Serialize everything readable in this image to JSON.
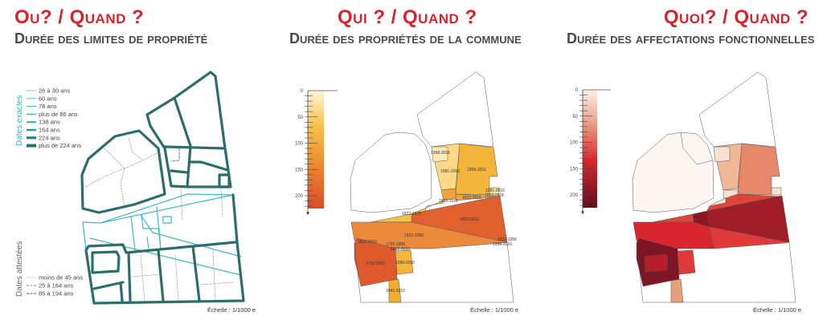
{
  "panels": [
    {
      "title": "Ou? / Quand ?",
      "subtitle": "Durée des limites de propriété",
      "scale": "Échelle : 1/1000 e",
      "legend_exact_heading": "Dates exactes",
      "legend_exact": [
        "26 à 30 ans",
        "60 ans",
        "78 ans",
        "plus de 86 ans",
        "138 ans",
        "164 ans",
        "224 ans",
        "plus de 224 ans"
      ],
      "legend_attested_heading": "Dates attestées",
      "legend_attested": [
        "moins de 45 ans",
        "25 à 164 ans",
        "85 à 194 ans"
      ]
    },
    {
      "title": "Qui ?  / Quand ?",
      "subtitle": "Durée des propriétés de la commune",
      "scale": "Échelle : 1/1000 e",
      "colorbar_ticks": [
        "0",
        "50",
        "100",
        "150",
        "200"
      ],
      "parcel_labels": [
        "1968-2016",
        "1981-2016",
        "1956-2016",
        "1981-2016",
        "1822-2016",
        "1822-2016",
        "1822-2016",
        "1823-1978",
        "1823-2016",
        "1822-1996",
        "1822-1956",
        "1956-2016",
        "1823-2016",
        "1796-1956",
        "1822-2016",
        "1752-2016",
        "1956-2016",
        "1941-2010"
      ]
    },
    {
      "title": "Quoi? / Quand ?",
      "subtitle": "Durée des  affectations fonctionnelles",
      "scale": "Échelle : 1/1000 e",
      "colorbar_ticks": [
        "0",
        "50",
        "100",
        "150",
        "200"
      ]
    }
  ],
  "colors": {
    "title": "#d8232a",
    "subtitle": "#4a4a4a",
    "teal_dark": "#2c6e6c",
    "teal_light": "#3bbcc4",
    "orange_scale": [
      "#fdf5d8",
      "#f4b63a",
      "#de5a2c"
    ],
    "red_scale": [
      "#fbf1ea",
      "#d9262e",
      "#5e0f1c"
    ]
  }
}
